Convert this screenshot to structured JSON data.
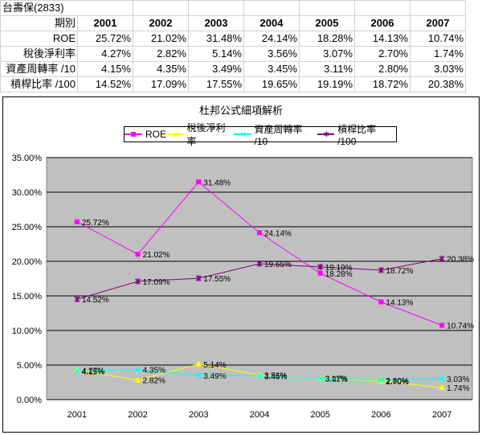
{
  "sheet": {
    "title": "台壽保(2833)",
    "header_label": "期別",
    "years": [
      "2001",
      "2002",
      "2003",
      "2004",
      "2005",
      "2006",
      "2007"
    ],
    "rows": [
      {
        "label": "ROE",
        "cells": [
          "25.72%",
          "21.02%",
          "31.48%",
          "24.14%",
          "18.28%",
          "14.13%",
          "10.74%"
        ]
      },
      {
        "label": "稅後淨利率",
        "cells": [
          "4.27%",
          "2.82%",
          "5.14%",
          "3.56%",
          "3.07%",
          "2.70%",
          "1.74%"
        ]
      },
      {
        "label": "資產周轉率 /10",
        "cells": [
          "4.15%",
          "4.35%",
          "3.49%",
          "3.45%",
          "3.11%",
          "2.80%",
          "3.03%"
        ]
      },
      {
        "label": "槓桿比率 /100",
        "cells": [
          "14.52%",
          "17.09%",
          "17.55%",
          "19.65%",
          "19.19%",
          "18.72%",
          "20.38%"
        ]
      }
    ]
  },
  "chart_data": {
    "type": "line",
    "title": "杜邦公式細項解析",
    "categories": [
      "2001",
      "2002",
      "2003",
      "2004",
      "2005",
      "2006",
      "2007"
    ],
    "ylim": [
      0,
      35
    ],
    "yticks": [
      "0.00%",
      "5.00%",
      "10.00%",
      "15.00%",
      "20.00%",
      "25.00%",
      "30.00%",
      "35.00%"
    ],
    "grid": true,
    "legend_position": "top",
    "series": [
      {
        "name": "ROE",
        "color": "#ff00ff",
        "marker": "square",
        "values": [
          25.72,
          21.02,
          31.48,
          24.14,
          18.28,
          14.13,
          10.74
        ],
        "labels": [
          "25.72%",
          "21.02%",
          "31.48%",
          "24.14%",
          "18.28%",
          "14.13%",
          "10.74%"
        ]
      },
      {
        "name": "稅後淨利率",
        "color": "#ffff00",
        "marker": "triangle",
        "values": [
          4.27,
          2.82,
          5.14,
          3.56,
          3.07,
          2.7,
          1.74
        ],
        "labels": [
          "4.27%",
          "2.82%",
          "5.14%",
          "3.56%",
          "3.07%",
          "2.70%",
          "1.74%"
        ]
      },
      {
        "name": "資產周轉率 /10",
        "color": "#00ffff",
        "marker": "x",
        "values": [
          4.15,
          4.35,
          3.49,
          3.45,
          3.11,
          2.8,
          3.03
        ],
        "labels": [
          "4.15%",
          "4.35%",
          "3.49%",
          "3.45%",
          "3.11%",
          "2.80%",
          "3.03%"
        ]
      },
      {
        "name": "槓桿比率 /100",
        "color": "#800080",
        "marker": "star",
        "values": [
          14.52,
          17.09,
          17.55,
          19.65,
          19.19,
          18.72,
          20.38
        ],
        "labels": [
          "14.52%",
          "17.09%",
          "17.55%",
          "19.65%",
          "19.19%",
          "18.72%",
          "20.38%"
        ]
      }
    ],
    "plot_background": "#c0c0c0"
  }
}
